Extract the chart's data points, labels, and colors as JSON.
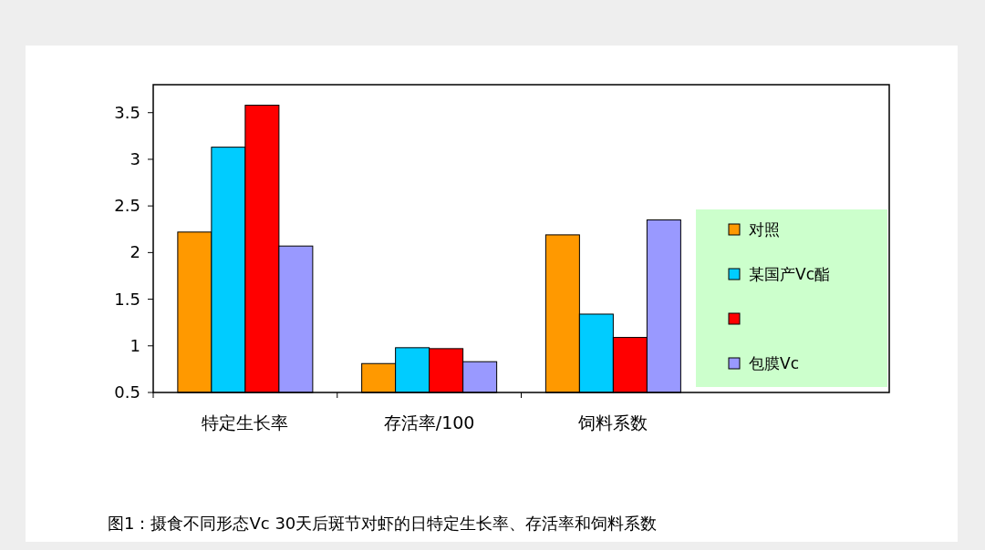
{
  "chart_data": {
    "type": "bar",
    "categories": [
      "特定生长率",
      "存活率/100",
      "饲料系数"
    ],
    "series": [
      {
        "name": "对照",
        "color": "#ff9900",
        "values": [
          2.22,
          0.81,
          2.19
        ]
      },
      {
        "name": "某国产Vc酯",
        "color": "#00ccff",
        "values": [
          3.13,
          0.98,
          1.34
        ]
      },
      {
        "color": "#ff0000",
        "values": [
          3.58,
          0.97,
          1.09
        ]
      },
      {
        "name": "包膜Vc",
        "color": "#9999ff",
        "values": [
          2.07,
          0.83,
          2.35
        ]
      }
    ],
    "ylim": [
      0.5,
      3.8
    ],
    "yticks": [
      0.5,
      1,
      1.5,
      2,
      2.5,
      3,
      3.5
    ],
    "grid": false,
    "legend": "right",
    "annotations": [
      "图1：摄食不同形态Vc 30天后斑节对虾的日特定生长率、存活率和饲料系数"
    ]
  }
}
